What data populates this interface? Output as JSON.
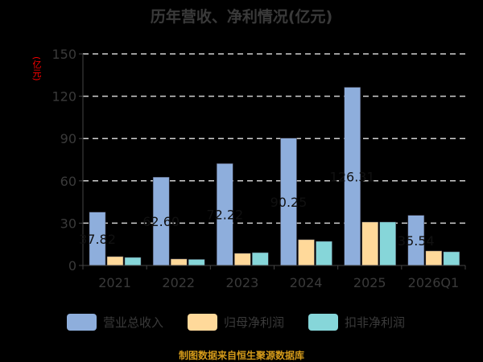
{
  "chart_data": {
    "type": "bar",
    "title": "历年营收、净利情况(亿元)",
    "ylabel": "(亿元)",
    "xlabel": "",
    "ylim": [
      0,
      150
    ],
    "yticks": [
      0,
      30,
      60,
      90,
      120,
      150
    ],
    "categories": [
      "2021",
      "2022",
      "2023",
      "2024",
      "2025",
      "2026Q1"
    ],
    "grid": true,
    "legend_position": "bottom",
    "series": [
      {
        "name": "营业总收入",
        "color": "#8eaedc",
        "values": [
          37.82,
          62.6,
          72.22,
          90.25,
          126.31,
          35.54
        ],
        "labels": [
          "37.82",
          "62.60",
          "72.22",
          "90.25",
          "126.31",
          "35.54"
        ]
      },
      {
        "name": "归母净利润",
        "color": "#ffd99a",
        "values": [
          6.3,
          4.6,
          8.6,
          18.3,
          30.8,
          10.3
        ]
      },
      {
        "name": "扣非净利润",
        "color": "#86d6d9",
        "values": [
          5.7,
          4.3,
          9.1,
          17.1,
          30.8,
          9.7
        ]
      }
    ],
    "source": "制图数据来自恒生聚源数据库"
  }
}
